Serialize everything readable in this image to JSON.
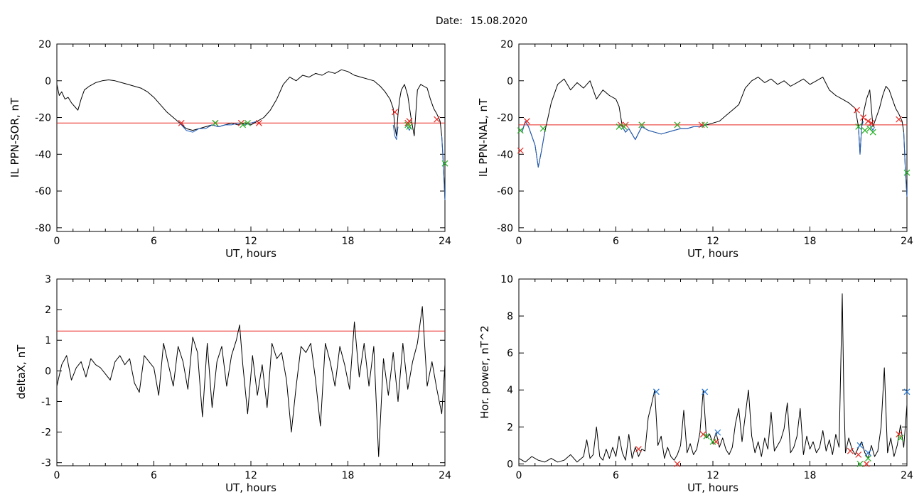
{
  "header": {
    "date_label": "Date:",
    "date_value": "15.08.2020"
  },
  "chart_data": [
    {
      "type": "line",
      "xlabel": "UT, hours",
      "ylabel": "IL PPN-SOR, nT",
      "xlim": [
        0,
        24
      ],
      "ylim": [
        -82,
        20
      ],
      "xticks": [
        0,
        6,
        12,
        18,
        24
      ],
      "yticks": [
        20,
        0,
        -20,
        -40,
        -60,
        -80
      ],
      "threshold": -23,
      "series": [
        {
          "color": "#000000",
          "x": [
            0,
            0.15,
            0.3,
            0.5,
            0.7,
            0.9,
            1.1,
            1.3,
            1.5,
            1.7,
            2.0,
            2.4,
            2.8,
            3.2,
            3.6,
            4.0,
            4.4,
            4.8,
            5.2,
            5.6,
            6.0,
            6.4,
            6.8,
            7.2,
            7.6,
            8.0,
            8.4,
            8.8,
            9.2,
            9.6,
            10.0,
            10.4,
            10.8,
            11.2,
            11.6,
            12.0,
            12.4,
            12.8,
            13.2,
            13.6,
            14.0,
            14.4,
            14.8,
            15.2,
            15.6,
            16.0,
            16.4,
            16.8,
            17.2,
            17.6,
            18.0,
            18.4,
            18.8,
            19.2,
            19.6,
            20.0,
            20.3,
            20.6,
            20.8,
            20.9,
            21.0,
            21.1,
            21.2,
            21.3,
            21.5,
            21.7,
            21.9,
            22.1,
            22.3,
            22.5,
            22.7,
            22.9,
            23.1,
            23.3,
            23.5,
            23.7,
            23.8,
            23.9,
            24.0
          ],
          "y": [
            -2,
            -8,
            -6,
            -10,
            -9,
            -12,
            -14,
            -16,
            -10,
            -5,
            -3,
            -1,
            0,
            0.5,
            0,
            -1,
            -2,
            -3,
            -4,
            -6,
            -9,
            -13,
            -17,
            -20,
            -23,
            -26,
            -27,
            -26,
            -25,
            -24,
            -25,
            -24,
            -23,
            -24,
            -23,
            -24,
            -22,
            -20,
            -16,
            -10,
            -2,
            2,
            0,
            3,
            2,
            4,
            3,
            5,
            4,
            6,
            5,
            3,
            2,
            1,
            0,
            -3,
            -6,
            -10,
            -15,
            -25,
            -30,
            -18,
            -10,
            -5,
            -2,
            -8,
            -20,
            -30,
            -5,
            -2,
            -3,
            -4,
            -10,
            -15,
            -18,
            -22,
            -30,
            -45,
            -65
          ]
        },
        {
          "color": "#1f5fbf",
          "x": [
            7.6,
            8.0,
            8.4,
            8.8,
            9.2,
            9.6,
            10.0,
            10.4,
            10.8,
            11.2,
            11.6,
            12.0,
            12.4
          ],
          "y": [
            -23,
            -27,
            -28,
            -26,
            -26,
            -24,
            -25,
            -24,
            -24,
            -23,
            -24,
            -23,
            -22
          ]
        },
        {
          "color": "#1f5fbf",
          "x": [
            20.8,
            20.9,
            21.0,
            21.1
          ],
          "y": [
            -24,
            -30,
            -32,
            -25
          ]
        },
        {
          "color": "#1f5fbf",
          "x": [
            21.6,
            21.8,
            21.9
          ],
          "y": [
            -24,
            -27,
            -25
          ]
        },
        {
          "color": "#1f5fbf",
          "x": [
            23.8,
            23.9,
            24.0
          ],
          "y": [
            -30,
            -45,
            -65
          ]
        }
      ],
      "markers_red": {
        "x": [
          7.7,
          9.8,
          11.4,
          12.5,
          20.9,
          21.7,
          21.8,
          23.5
        ],
        "y": [
          -23,
          -23,
          -23,
          -23,
          -17,
          -23,
          -22,
          -21
        ]
      },
      "markers_green": {
        "x": [
          9.8,
          11.5,
          11.8,
          21.7,
          21.8,
          24.0
        ],
        "y": [
          -23,
          -24,
          -23,
          -24,
          -25,
          -45
        ]
      }
    },
    {
      "type": "line",
      "xlabel": "UT, hours",
      "ylabel": "IL PPN-NAL, nT",
      "xlim": [
        0,
        24
      ],
      "ylim": [
        -82,
        20
      ],
      "xticks": [
        0,
        6,
        12,
        18,
        24
      ],
      "yticks": [
        20,
        0,
        -20,
        -40,
        -60,
        -80
      ],
      "threshold": -24,
      "series": [
        {
          "color": "#000000",
          "x": [
            0,
            0.2,
            0.4,
            0.6,
            0.8,
            1.0,
            1.2,
            1.4,
            1.6,
            1.8,
            2.0,
            2.4,
            2.8,
            3.2,
            3.6,
            4.0,
            4.4,
            4.8,
            5.2,
            5.6,
            6.0,
            6.2,
            6.4,
            6.6,
            6.8,
            7.2,
            7.6,
            8.0,
            8.4,
            8.8,
            9.2,
            9.6,
            10.0,
            10.4,
            10.8,
            11.2,
            11.6,
            12.0,
            12.4,
            12.8,
            13.2,
            13.6,
            14.0,
            14.4,
            14.8,
            15.2,
            15.6,
            16.0,
            16.4,
            16.8,
            17.2,
            17.6,
            18.0,
            18.4,
            18.8,
            19.2,
            19.6,
            20.0,
            20.4,
            20.8,
            21.0,
            21.1,
            21.2,
            21.3,
            21.5,
            21.7,
            21.9,
            22.1,
            22.3,
            22.5,
            22.7,
            22.9,
            23.1,
            23.3,
            23.5,
            23.7,
            23.8,
            23.9,
            24.0
          ],
          "y": [
            -26,
            -28,
            -22,
            -25,
            -30,
            -35,
            -47,
            -38,
            -28,
            -20,
            -12,
            -2,
            1,
            -5,
            -1,
            -4,
            0,
            -10,
            -5,
            -8,
            -10,
            -14,
            -25,
            -28,
            -26,
            -32,
            -25,
            -27,
            -28,
            -29,
            -28,
            -27,
            -26,
            -26,
            -25,
            -25,
            -24,
            -23,
            -22,
            -19,
            -16,
            -13,
            -4,
            0,
            2,
            -1,
            1,
            -2,
            0,
            -3,
            -1,
            1,
            -2,
            0,
            2,
            -5,
            -8,
            -10,
            -12,
            -15,
            -25,
            -40,
            -25,
            -18,
            -10,
            -5,
            -25,
            -20,
            -15,
            -8,
            -3,
            -5,
            -10,
            -15,
            -18,
            -22,
            -28,
            -48,
            -63
          ]
        },
        {
          "color": "#1f5fbf",
          "x": [
            0,
            0.2,
            0.4,
            0.6,
            0.8,
            1.0,
            1.2,
            1.4,
            1.6
          ],
          "y": [
            -26,
            -28,
            -22,
            -25,
            -30,
            -35,
            -47,
            -38,
            -28
          ]
        },
        {
          "color": "#1f5fbf",
          "x": [
            6.2,
            6.4,
            6.6,
            6.8,
            7.2,
            7.6,
            8.0,
            8.4,
            8.8,
            9.2,
            9.6,
            10.0,
            10.4,
            10.8,
            11.2,
            11.6
          ],
          "y": [
            -24,
            -25,
            -28,
            -26,
            -32,
            -25,
            -27,
            -28,
            -29,
            -28,
            -27,
            -26,
            -26,
            -25,
            -25,
            -24
          ]
        },
        {
          "color": "#1f5fbf",
          "x": [
            21.0,
            21.1,
            21.2,
            21.3
          ],
          "y": [
            -25,
            -40,
            -25,
            -22
          ]
        },
        {
          "color": "#1f5fbf",
          "x": [
            21.7,
            21.9,
            22.0
          ],
          "y": [
            -24,
            -27,
            -25
          ]
        },
        {
          "color": "#1f5fbf",
          "x": [
            23.8,
            23.9,
            24.0
          ],
          "y": [
            -28,
            -48,
            -63
          ]
        }
      ],
      "markers_red": {
        "x": [
          0.1,
          0.5,
          6.3,
          6.6,
          7.6,
          9.8,
          11.3,
          20.9,
          21.3,
          21.6,
          21.8,
          23.5
        ],
        "y": [
          -38,
          -22,
          -24,
          -24,
          -24,
          -24,
          -24,
          -16,
          -20,
          -22,
          -23,
          -21
        ]
      },
      "markers_green": {
        "x": [
          0.1,
          1.5,
          6.2,
          6.5,
          7.6,
          9.8,
          11.5,
          21.0,
          21.4,
          21.7,
          21.9,
          24.0
        ],
        "y": [
          -27,
          -26,
          -25,
          -25,
          -24,
          -24,
          -24,
          -25,
          -27,
          -26,
          -28,
          -50
        ]
      }
    },
    {
      "type": "line",
      "xlabel": "UT, hours",
      "ylabel": "deltaX, nT",
      "xlim": [
        0,
        24
      ],
      "ylim": [
        -3.1,
        3
      ],
      "xticks": [
        0,
        6,
        12,
        18,
        24
      ],
      "yticks": [
        3,
        2,
        1,
        0,
        -1,
        -2,
        -3
      ],
      "threshold": 1.3,
      "series": [
        {
          "color": "#000000",
          "x": [
            0,
            0.3,
            0.6,
            0.9,
            1.2,
            1.5,
            1.8,
            2.1,
            2.4,
            2.7,
            3.0,
            3.3,
            3.6,
            3.9,
            4.2,
            4.5,
            4.8,
            5.1,
            5.4,
            5.7,
            6.0,
            6.3,
            6.6,
            6.9,
            7.2,
            7.5,
            7.8,
            8.1,
            8.4,
            8.7,
            9.0,
            9.3,
            9.6,
            9.9,
            10.2,
            10.5,
            10.8,
            11.1,
            11.3,
            11.5,
            11.8,
            12.1,
            12.4,
            12.7,
            13.0,
            13.3,
            13.6,
            13.9,
            14.2,
            14.5,
            14.8,
            15.1,
            15.4,
            15.7,
            16.0,
            16.3,
            16.6,
            16.9,
            17.2,
            17.5,
            17.8,
            18.1,
            18.4,
            18.7,
            19.0,
            19.3,
            19.6,
            19.9,
            20.2,
            20.5,
            20.8,
            21.1,
            21.4,
            21.7,
            22.0,
            22.3,
            22.6,
            22.9,
            23.2,
            23.5,
            23.8,
            24.0
          ],
          "y": [
            -0.5,
            0.2,
            0.5,
            -0.3,
            0.1,
            0.3,
            -0.2,
            0.4,
            0.2,
            0.1,
            -0.1,
            -0.3,
            0.3,
            0.5,
            0.2,
            0.4,
            -0.4,
            -0.7,
            0.5,
            0.3,
            0.1,
            -0.8,
            0.9,
            0.2,
            -0.5,
            0.8,
            0.3,
            -0.6,
            1.1,
            0.6,
            -1.5,
            0.9,
            -1.2,
            0.3,
            0.8,
            -0.5,
            0.5,
            1.0,
            1.5,
            0.2,
            -1.4,
            0.5,
            -0.8,
            0.2,
            -1.2,
            0.9,
            0.4,
            0.6,
            -0.3,
            -2.0,
            -0.5,
            0.8,
            0.6,
            0.9,
            -0.3,
            -1.8,
            0.9,
            0.3,
            -0.5,
            0.8,
            0.2,
            -0.6,
            1.6,
            -0.2,
            0.9,
            -0.5,
            0.8,
            -2.8,
            0.4,
            -0.8,
            0.6,
            -1.0,
            0.9,
            -0.6,
            0.3,
            0.9,
            2.1,
            -0.5,
            0.3,
            -0.6,
            -1.4,
            0.2
          ]
        }
      ]
    },
    {
      "type": "line",
      "xlabel": "UT, hours",
      "ylabel": "Hor. power, nT^2",
      "xlim": [
        0,
        24
      ],
      "ylim": [
        -0.1,
        10
      ],
      "xticks": [
        0,
        6,
        12,
        18,
        24
      ],
      "yticks": [
        10,
        8,
        6,
        4,
        2,
        0
      ],
      "series": [
        {
          "color": "#000000",
          "x": [
            0,
            0.4,
            0.8,
            1.2,
            1.6,
            2.0,
            2.4,
            2.8,
            3.2,
            3.6,
            4.0,
            4.2,
            4.4,
            4.6,
            4.8,
            5.0,
            5.2,
            5.4,
            5.6,
            5.8,
            6.0,
            6.2,
            6.4,
            6.6,
            6.8,
            7.0,
            7.2,
            7.4,
            7.6,
            7.8,
            8.0,
            8.2,
            8.4,
            8.6,
            8.8,
            9.0,
            9.2,
            9.4,
            9.6,
            9.8,
            10.0,
            10.2,
            10.4,
            10.6,
            10.8,
            11.0,
            11.2,
            11.4,
            11.6,
            11.8,
            12.0,
            12.2,
            12.4,
            12.6,
            12.8,
            13.0,
            13.2,
            13.4,
            13.6,
            13.8,
            14.0,
            14.2,
            14.4,
            14.6,
            14.8,
            15.0,
            15.2,
            15.4,
            15.6,
            15.8,
            16.0,
            16.2,
            16.4,
            16.6,
            16.8,
            17.0,
            17.2,
            17.4,
            17.6,
            17.8,
            18.0,
            18.2,
            18.4,
            18.6,
            18.8,
            19.0,
            19.2,
            19.4,
            19.6,
            19.8,
            20.0,
            20.1,
            20.2,
            20.4,
            20.6,
            20.8,
            21.0,
            21.2,
            21.4,
            21.6,
            21.8,
            22.0,
            22.2,
            22.4,
            22.6,
            22.8,
            23.0,
            23.2,
            23.4,
            23.6,
            23.8,
            24.0
          ],
          "y": [
            0.3,
            0.1,
            0.4,
            0.2,
            0.1,
            0.3,
            0.1,
            0.2,
            0.5,
            0.1,
            0.4,
            1.3,
            0.3,
            0.5,
            2.0,
            0.4,
            0.2,
            0.8,
            0.3,
            0.9,
            0.4,
            1.5,
            0.6,
            0.2,
            1.6,
            0.3,
            0.9,
            0.4,
            0.8,
            0.7,
            2.5,
            3.2,
            4.0,
            1.0,
            1.5,
            0.3,
            0.9,
            0.4,
            0.2,
            0.5,
            1.0,
            2.9,
            0.6,
            1.1,
            0.5,
            0.8,
            1.7,
            4.0,
            1.4,
            1.6,
            1.1,
            1.7,
            0.9,
            1.4,
            0.8,
            0.5,
            0.9,
            2.2,
            3.0,
            1.2,
            2.6,
            4.0,
            1.5,
            0.6,
            1.2,
            0.4,
            1.4,
            0.8,
            2.8,
            0.7,
            1.0,
            1.3,
            1.9,
            3.3,
            0.6,
            0.9,
            1.5,
            3.0,
            0.5,
            1.5,
            0.8,
            1.2,
            0.6,
            0.9,
            1.8,
            0.7,
            1.3,
            0.5,
            1.6,
            0.9,
            9.2,
            3.5,
            0.6,
            1.4,
            0.8,
            0.5,
            0.9,
            1.2,
            0.6,
            0.3,
            1.0,
            0.4,
            0.7,
            2.0,
            5.2,
            0.6,
            1.4,
            0.4,
            1.0,
            2.1,
            0.9,
            3.2
          ]
        }
      ],
      "markers_red": {
        "x": [
          7.4,
          9.8,
          11.4,
          12.2,
          20.5,
          21.0,
          21.5,
          23.5
        ],
        "y": [
          0.8,
          0.0,
          1.6,
          1.2,
          0.7,
          0.5,
          0.0,
          1.6
        ]
      },
      "markers_green": {
        "x": [
          11.6,
          12.0,
          21.1,
          21.6,
          23.6
        ],
        "y": [
          1.5,
          1.2,
          0.0,
          0.3,
          1.4
        ]
      },
      "markers_blue": {
        "x": [
          8.5,
          11.5,
          12.3,
          21.1,
          21.6,
          24.0
        ],
        "y": [
          3.9,
          3.9,
          1.7,
          1.0,
          0.6,
          3.9
        ]
      }
    }
  ]
}
